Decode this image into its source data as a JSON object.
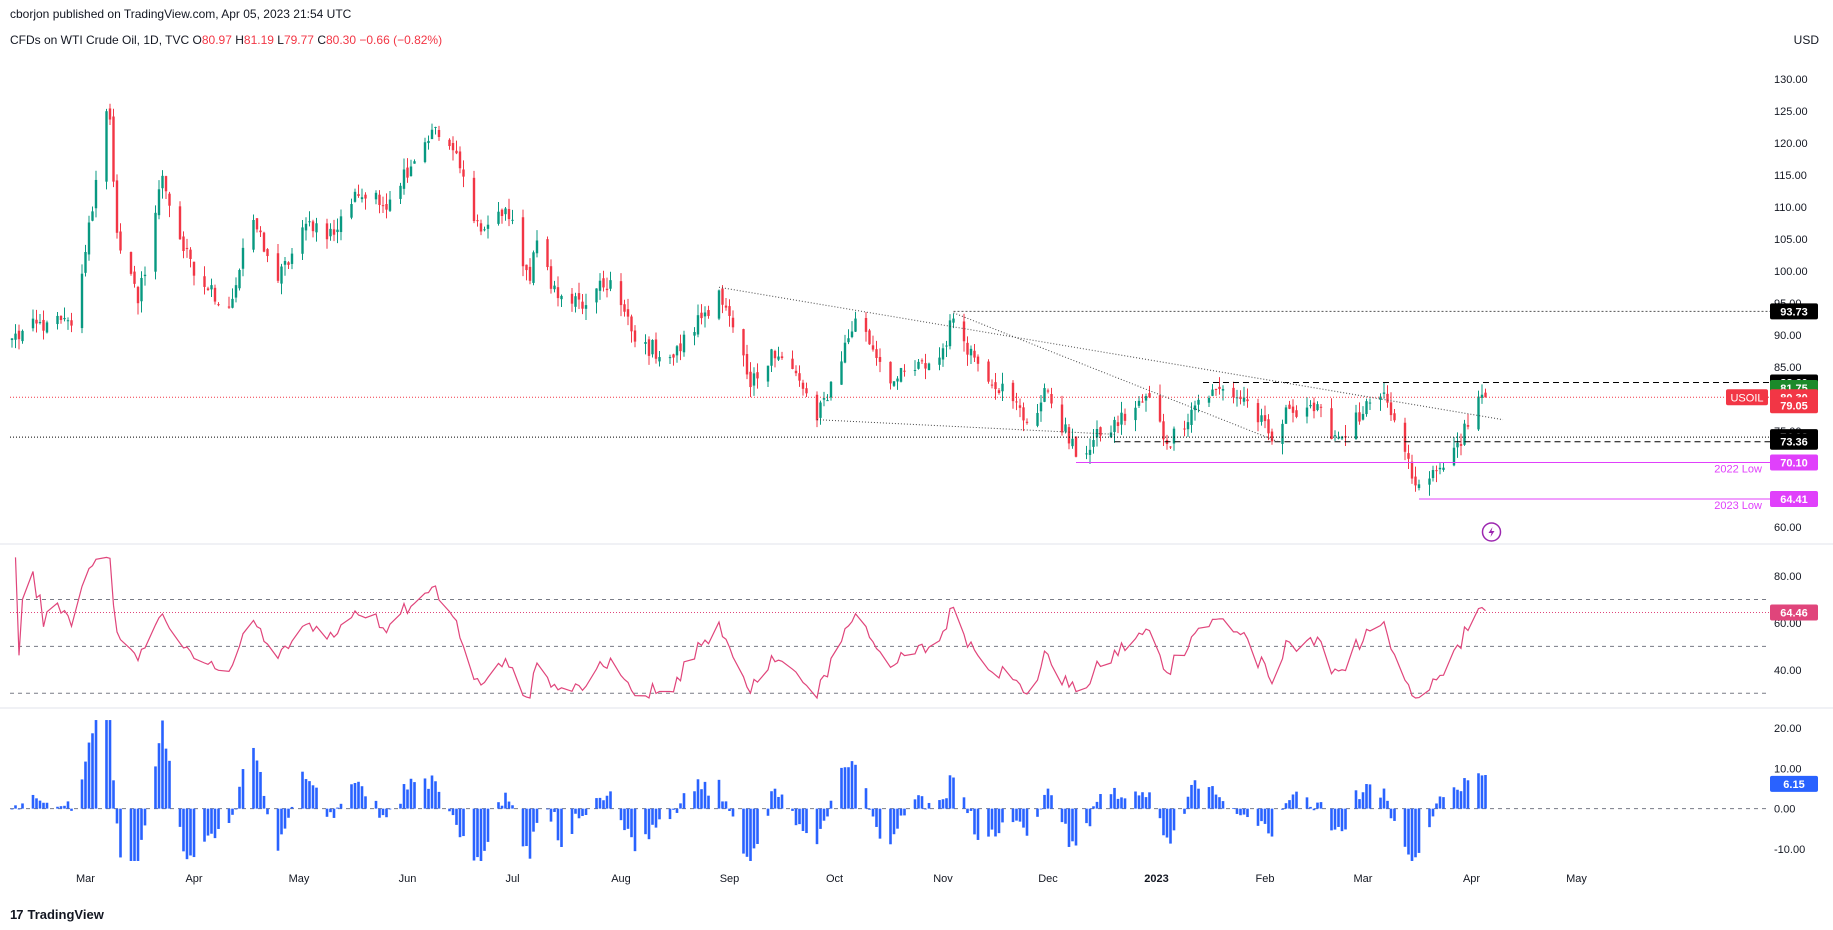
{
  "header": {
    "published": "cborjon published on TradingView.com, Apr 05, 2023 21:54 UTC",
    "symbol_title": "CFDs on WTI Crude Oil, 1D, TVC",
    "o_label": "O",
    "o": "80.97",
    "h_label": "H",
    "h": "81.19",
    "l_label": "L",
    "l": "79.77",
    "c_label": "C",
    "c": "80.30",
    "change": "−0.66 (−0.82%)",
    "currency": "USD"
  },
  "footer": {
    "brand": "TradingView",
    "logo": "17"
  },
  "colors": {
    "up": "#089981",
    "down": "#f23645",
    "rsi": "#e0457b",
    "hist": "#2962ff",
    "level_black": "#000000",
    "level_green": "#1b8a2a",
    "level_red": "#f23645",
    "level_magenta": "#e040fb"
  },
  "chart_data": [
    {
      "type": "candlestick",
      "symbol": "USOIL",
      "x_ticks": [
        "Mar",
        "Apr",
        "May",
        "Jun",
        "Jul",
        "Aug",
        "Sep",
        "Oct",
        "Nov",
        "Dec",
        "2023",
        "Feb",
        "Mar",
        "Apr",
        "May"
      ],
      "y_ticks": [
        "130.00",
        "125.00",
        "120.00",
        "115.00",
        "110.00",
        "105.00",
        "100.00",
        "95.00",
        "90.00",
        "85.00",
        "80.00",
        "75.00",
        "70.00",
        "65.00",
        "60.00"
      ],
      "ylim": [
        58,
        133
      ],
      "anchors": [
        [
          "2022-02-08",
          89.5
        ],
        [
          "2022-02-18",
          92
        ],
        [
          "2022-02-25",
          91.5
        ],
        [
          "2022-03-01",
          103
        ],
        [
          "2022-03-07",
          125
        ],
        [
          "2022-03-08",
          123.7
        ],
        [
          "2022-03-10",
          106
        ],
        [
          "2022-03-16",
          95
        ],
        [
          "2022-03-23",
          114.9
        ],
        [
          "2022-03-28",
          105
        ],
        [
          "2022-04-01",
          99.3
        ],
        [
          "2022-04-11",
          94.3
        ],
        [
          "2022-04-18",
          108
        ],
        [
          "2022-04-25",
          98.5
        ],
        [
          "2022-05-04",
          107.8
        ],
        [
          "2022-05-11",
          105.7
        ],
        [
          "2022-05-17",
          112.4
        ],
        [
          "2022-05-25",
          110.3
        ],
        [
          "2022-06-08",
          122.1
        ],
        [
          "2022-06-14",
          118.9
        ],
        [
          "2022-06-22",
          106.2
        ],
        [
          "2022-06-29",
          109.8
        ],
        [
          "2022-07-06",
          98.5
        ],
        [
          "2022-07-08",
          104.8
        ],
        [
          "2022-07-14",
          95.8
        ],
        [
          "2022-07-22",
          94.7
        ],
        [
          "2022-07-29",
          98.6
        ],
        [
          "2022-08-05",
          89.0
        ],
        [
          "2022-08-16",
          86.5
        ],
        [
          "2022-08-29",
          97.0
        ],
        [
          "2022-09-07",
          81.9
        ],
        [
          "2022-09-13",
          87.8
        ],
        [
          "2022-09-21",
          82.9
        ],
        [
          "2022-09-26",
          76.7
        ],
        [
          "2022-10-07",
          92.6
        ],
        [
          "2022-10-18",
          82.8
        ],
        [
          "2022-10-31",
          86.5
        ],
        [
          "2022-11-04",
          92.6
        ],
        [
          "2022-11-10",
          86.5
        ],
        [
          "2022-11-21",
          79.7
        ],
        [
          "2022-11-25",
          76.3
        ],
        [
          "2022-12-01",
          81.2
        ],
        [
          "2022-12-09",
          71.0
        ],
        [
          "2022-12-16",
          74.3
        ],
        [
          "2022-12-30",
          80.3
        ],
        [
          "2023-01-04",
          73.0
        ],
        [
          "2023-01-13",
          79.9
        ],
        [
          "2023-01-20",
          81.6
        ],
        [
          "2023-01-27",
          79.7
        ],
        [
          "2023-02-03",
          73.4
        ],
        [
          "2023-02-08",
          78.5
        ],
        [
          "2023-02-14",
          79.1
        ],
        [
          "2023-02-22",
          74.0
        ],
        [
          "2023-03-01",
          77.7
        ],
        [
          "2023-03-06",
          80.4
        ],
        [
          "2023-03-10",
          76.7
        ],
        [
          "2023-03-15",
          67.6
        ],
        [
          "2023-03-17",
          66.7
        ],
        [
          "2023-03-20",
          67.6
        ],
        [
          "2023-03-24",
          69.3
        ],
        [
          "2023-03-28",
          73.2
        ],
        [
          "2023-03-31",
          75.7
        ],
        [
          "2023-04-03",
          80.4
        ],
        [
          "2023-04-04",
          80.7
        ],
        [
          "2023-04-05",
          80.3
        ]
      ],
      "level_labels": [
        {
          "text": "93.73",
          "value": 93.73,
          "bg": "#000000",
          "fg": "#ffffff"
        },
        {
          "text": "82.60",
          "value": 82.6,
          "bg": "#000000",
          "fg": "#ffffff"
        },
        {
          "text": "81.75",
          "value": 81.75,
          "bg": "#1b8a2a",
          "fg": "#ffffff"
        },
        {
          "text": "80.30",
          "value": 80.3,
          "bg": "#f23645",
          "fg": "#ffffff"
        },
        {
          "text": "79.05",
          "value": 79.05,
          "bg": "#f23645",
          "fg": "#ffffff"
        },
        {
          "text": "74.08",
          "value": 74.08,
          "bg": "#000000",
          "fg": "#ffffff"
        },
        {
          "text": "73.36",
          "value": 73.36,
          "bg": "#000000",
          "fg": "#ffffff"
        },
        {
          "text": "70.10",
          "value": 70.1,
          "bg": "#e040fb",
          "fg": "#ffffff"
        },
        {
          "text": "64.41",
          "value": 64.41,
          "bg": "#e040fb",
          "fg": "#ffffff"
        }
      ],
      "symbol_tag": "USOIL",
      "annotations": [
        {
          "text": "2022 Low",
          "value": 70.1
        },
        {
          "text": "2023 Low",
          "value": 64.41
        }
      ]
    },
    {
      "type": "line",
      "name": "RSI",
      "y_ticks": [
        "80.00",
        "60.00",
        "40.00"
      ],
      "ylim": [
        25,
        92
      ],
      "bands": [
        70,
        50,
        30
      ],
      "last_value_label": "64.46",
      "last_value": 64.46
    },
    {
      "type": "bar",
      "name": "Momentum",
      "y_ticks": [
        "20.00",
        "10.00",
        "0.00",
        "-10.00"
      ],
      "ylim": [
        -14,
        24
      ],
      "last_value_label": "6.15",
      "last_value": 6.15
    }
  ]
}
